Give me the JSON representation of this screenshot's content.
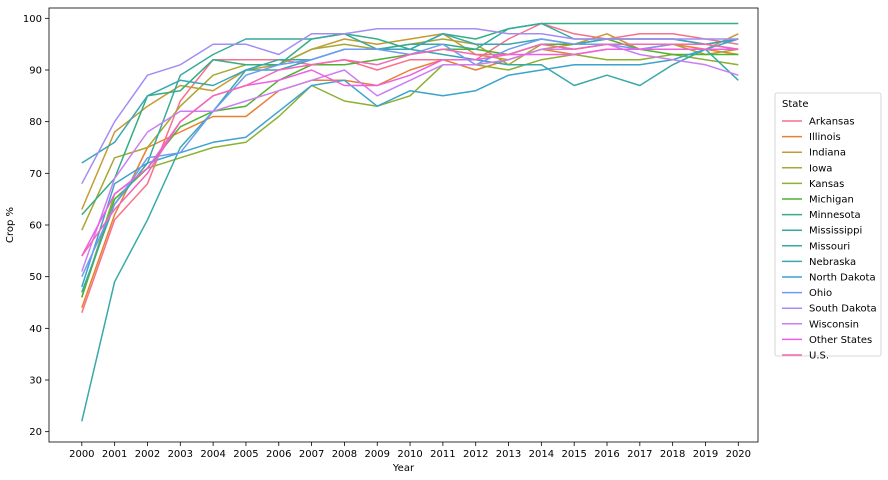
{
  "chart_data": {
    "type": "line",
    "xlabel": "Year",
    "ylabel": "Crop %",
    "x": [
      2000,
      2001,
      2002,
      2003,
      2004,
      2005,
      2006,
      2007,
      2008,
      2009,
      2010,
      2011,
      2012,
      2013,
      2014,
      2015,
      2016,
      2017,
      2018,
      2019,
      2020
    ],
    "xlim": [
      1999.0,
      2020.6
    ],
    "ylim": [
      18,
      102
    ],
    "yticks": [
      20,
      30,
      40,
      50,
      60,
      70,
      80,
      90,
      100
    ],
    "grid": false,
    "legend": {
      "title": "State",
      "placement": "center-right, outside plot"
    },
    "series": [
      {
        "name": "Arkansas",
        "color": "#f77189",
        "values": [
          43,
          61,
          68,
          84,
          92,
          92,
          92,
          91,
          92,
          90,
          92,
          92,
          92,
          96,
          99,
          97,
          96,
          97,
          97,
          96,
          95
        ]
      },
      {
        "name": "Illinois",
        "color": "#e8812f",
        "values": [
          44,
          62,
          75,
          78,
          81,
          81,
          86,
          88,
          88,
          87,
          90,
          92,
          90,
          92,
          94,
          93,
          94,
          94,
          95,
          94,
          93
        ]
      },
      {
        "name": "Indiana",
        "color": "#c59a32",
        "values": [
          63,
          78,
          83,
          87,
          86,
          90,
          91,
          94,
          96,
          95,
          96,
          97,
          93,
          92,
          94,
          95,
          97,
          94,
          94,
          94,
          97
        ]
      },
      {
        "name": "Iowa",
        "color": "#a9a632",
        "values": [
          59,
          73,
          75,
          83,
          89,
          91,
          91,
          94,
          95,
          94,
          95,
          96,
          95,
          91,
          95,
          94,
          95,
          95,
          95,
          93,
          94
        ]
      },
      {
        "name": "Kansas",
        "color": "#8db031",
        "values": [
          46,
          66,
          71,
          73,
          75,
          76,
          81,
          87,
          84,
          83,
          85,
          91,
          91,
          90,
          92,
          93,
          92,
          92,
          93,
          92,
          91
        ]
      },
      {
        "name": "Michigan",
        "color": "#50b131",
        "values": [
          46,
          65,
          71,
          79,
          82,
          83,
          88,
          91,
          91,
          92,
          93,
          94,
          94,
          93,
          95,
          95,
          96,
          94,
          93,
          93,
          93
        ]
      },
      {
        "name": "Minnesota",
        "color": "#34ae84",
        "values": [
          62,
          69,
          85,
          86,
          92,
          91,
          91,
          96,
          97,
          96,
          94,
          97,
          96,
          98,
          99,
          99,
          99,
          99,
          99,
          99,
          99
        ]
      },
      {
        "name": "Mississippi",
        "color": "#37aa9c",
        "values": [
          47,
          64,
          72,
          89,
          93,
          96,
          96,
          96,
          97,
          94,
          95,
          95,
          94,
          98,
          99,
          96,
          96,
          96,
          96,
          95,
          96
        ]
      },
      {
        "name": "Missouri",
        "color": "#38a9a9",
        "values": [
          22,
          49,
          61,
          75,
          82,
          90,
          92,
          92,
          94,
          94,
          94,
          93,
          92,
          91,
          91,
          87,
          89,
          87,
          91,
          94,
          88
        ]
      },
      {
        "name": "Nebraska",
        "color": "#3aa6b5",
        "values": [
          72,
          76,
          85,
          88,
          87,
          90,
          90,
          92,
          94,
          94,
          94,
          97,
          95,
          95,
          96,
          95,
          96,
          96,
          96,
          95,
          96
        ]
      },
      {
        "name": "North Dakota",
        "color": "#3ca3cd",
        "values": [
          48,
          68,
          72,
          74,
          76,
          77,
          82,
          87,
          88,
          83,
          86,
          85,
          86,
          89,
          90,
          91,
          91,
          91,
          92,
          94,
          96
        ]
      },
      {
        "name": "Ohio",
        "color": "#6e9cf4",
        "values": [
          50,
          64,
          73,
          74,
          82,
          89,
          91,
          92,
          94,
          94,
          93,
          95,
          91,
          94,
          96,
          95,
          95,
          94,
          95,
          95,
          94
        ]
      },
      {
        "name": "South Dakota",
        "color": "#a48cf4",
        "values": [
          68,
          80,
          89,
          91,
          95,
          95,
          93,
          97,
          97,
          98,
          98,
          98,
          98,
          97,
          97,
          96,
          96,
          96,
          96,
          96,
          96
        ]
      },
      {
        "name": "Wisconsin",
        "color": "#cb7ef4",
        "values": [
          51,
          69,
          78,
          82,
          82,
          84,
          86,
          88,
          90,
          85,
          88,
          91,
          91,
          92,
          94,
          94,
          95,
          93,
          92,
          91,
          89
        ]
      },
      {
        "name": "Other States",
        "color": "#f15ee4",
        "values": [
          54,
          66,
          71,
          80,
          85,
          87,
          88,
          90,
          87,
          87,
          89,
          92,
          92,
          93,
          93,
          93,
          94,
          94,
          94,
          94,
          94
        ]
      },
      {
        "name": "U.S.",
        "color": "#f565b8",
        "values": [
          54,
          63,
          70,
          80,
          85,
          87,
          90,
          91,
          92,
          91,
          93,
          94,
          93,
          93,
          95,
          94,
          95,
          95,
          95,
          95,
          94
        ]
      }
    ]
  }
}
